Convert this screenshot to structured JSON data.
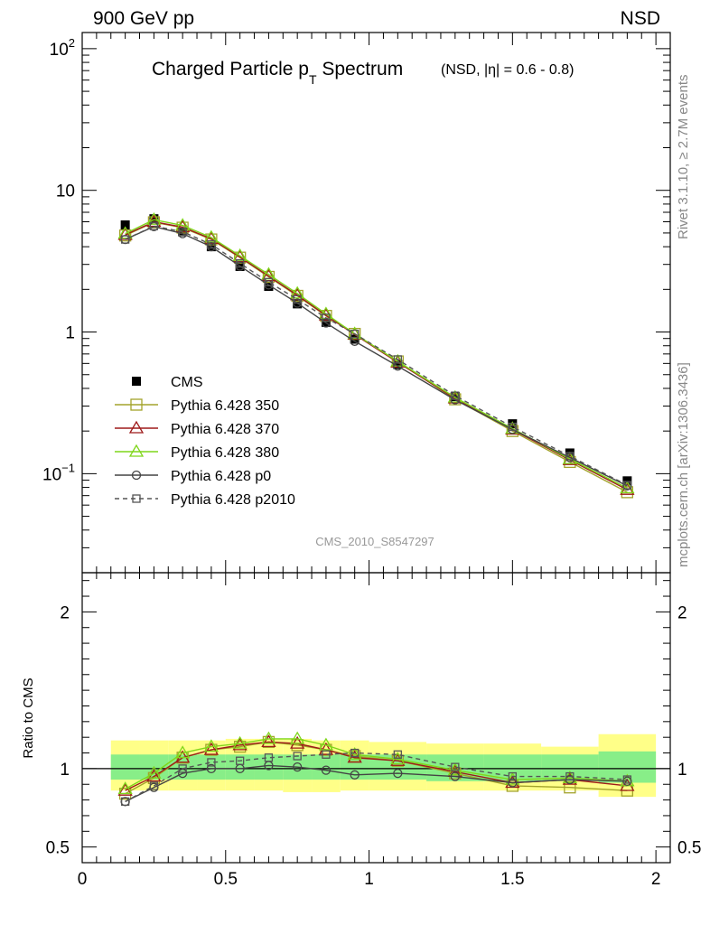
{
  "header": {
    "left": "900 GeV pp",
    "right": "NSD"
  },
  "side_labels": {
    "upper": "Rivet 3.1.10, ≥ 2.7M events",
    "lower": "mcplots.cern.ch [arXiv:1306.3436]"
  },
  "title": {
    "main": "Charged Particle p",
    "sub": "T",
    "main2": " Spectrum",
    "detail": "(NSD, |η| = 0.6 - 0.8)"
  },
  "watermark": "CMS_2010_S8547297",
  "ratio_ylabel": "Ratio to CMS",
  "colors": {
    "cms": "#000000",
    "p350": "#a3a32b",
    "p370": "#9e1a1a",
    "p380": "#7fd61a",
    "p0": "#444444",
    "p2010": "#555555",
    "band_outer": "#ffff88",
    "band_inner": "#88ee88"
  },
  "chart_data": {
    "type": "scatter",
    "x": [
      0.15,
      0.25,
      0.35,
      0.45,
      0.55,
      0.65,
      0.75,
      0.85,
      0.95,
      1.1,
      1.3,
      1.5,
      1.7,
      1.9
    ],
    "xlim": [
      0,
      2.05
    ],
    "main_panel": {
      "yscale": "log",
      "ylim": [
        0.02,
        130
      ],
      "y_ticklabels": [
        "10−1",
        "1",
        "10",
        "102"
      ],
      "series": [
        {
          "name": "CMS",
          "style": "data",
          "values": [
            5.7,
            6.3,
            5.1,
            4.0,
            2.9,
            2.1,
            1.58,
            1.17,
            0.89,
            0.59,
            0.35,
            0.225,
            0.14,
            0.089
          ]
        },
        {
          "name": "Pythia 6.428 350",
          "style": "square",
          "values": [
            4.8,
            5.95,
            5.45,
            4.5,
            3.35,
            2.45,
            1.8,
            1.3,
            0.97,
            0.62,
            0.335,
            0.2,
            0.121,
            0.074
          ]
        },
        {
          "name": "Pythia 6.428 370",
          "style": "triangle",
          "values": [
            4.85,
            6.0,
            5.5,
            4.55,
            3.38,
            2.48,
            1.82,
            1.31,
            0.96,
            0.61,
            0.34,
            0.205,
            0.125,
            0.077
          ]
        },
        {
          "name": "Pythia 6.428 380",
          "style": "triangle",
          "values": [
            4.95,
            6.2,
            5.65,
            4.65,
            3.45,
            2.55,
            1.87,
            1.34,
            0.97,
            0.62,
            0.345,
            0.208,
            0.127,
            0.079
          ]
        },
        {
          "name": "Pythia 6.428 p0",
          "style": "circle",
          "values": [
            4.5,
            5.55,
            4.95,
            4.0,
            2.92,
            2.15,
            1.6,
            1.16,
            0.86,
            0.575,
            0.332,
            0.205,
            0.13,
            0.082
          ]
        },
        {
          "name": "Pythia 6.428 p2010",
          "style": "dashed-square",
          "values": [
            4.5,
            5.6,
            5.1,
            4.15,
            3.05,
            2.25,
            1.7,
            1.26,
            0.97,
            0.64,
            0.355,
            0.214,
            0.133,
            0.083
          ]
        }
      ]
    },
    "ratio_panel": {
      "ylim": [
        0.4,
        2.25
      ],
      "y_ticklabels": [
        "0.5",
        "1",
        "2"
      ],
      "x_ticklabels": [
        "0",
        "0.5",
        "1",
        "1.5",
        "2"
      ],
      "band_edges": [
        0.1,
        0.2,
        0.3,
        0.4,
        0.5,
        0.6,
        0.7,
        0.8,
        0.9,
        1.0,
        1.2,
        1.4,
        1.6,
        1.8,
        2.0
      ],
      "band_outer": [
        [
          0.86,
          1.18
        ],
        [
          0.86,
          1.18
        ],
        [
          0.86,
          1.18
        ],
        [
          0.86,
          1.18
        ],
        [
          0.86,
          1.19
        ],
        [
          0.86,
          1.19
        ],
        [
          0.85,
          1.19
        ],
        [
          0.85,
          1.18
        ],
        [
          0.86,
          1.18
        ],
        [
          0.86,
          1.17
        ],
        [
          0.86,
          1.16
        ],
        [
          0.86,
          1.16
        ],
        [
          0.86,
          1.14
        ],
        [
          0.82,
          1.22
        ]
      ],
      "band_inner": [
        [
          0.93,
          1.09
        ],
        [
          0.93,
          1.09
        ],
        [
          0.93,
          1.09
        ],
        [
          0.93,
          1.09
        ],
        [
          0.93,
          1.09
        ],
        [
          0.93,
          1.09
        ],
        [
          0.93,
          1.09
        ],
        [
          0.93,
          1.09
        ],
        [
          0.93,
          1.09
        ],
        [
          0.93,
          1.09
        ],
        [
          0.92,
          1.09
        ],
        [
          0.92,
          1.09
        ],
        [
          0.92,
          1.09
        ],
        [
          0.91,
          1.11
        ]
      ],
      "series": [
        {
          "name": "Pythia 6.428 350",
          "values": [
            0.84,
            0.94,
            1.07,
            1.12,
            1.14,
            1.17,
            1.15,
            1.12,
            1.08,
            1.05,
            0.97,
            0.89,
            0.88,
            0.86
          ]
        },
        {
          "name": "Pythia 6.428 370",
          "values": [
            0.86,
            0.95,
            1.07,
            1.12,
            1.15,
            1.17,
            1.16,
            1.12,
            1.07,
            1.05,
            0.98,
            0.91,
            0.93,
            0.89
          ]
        },
        {
          "name": "Pythia 6.428 380",
          "values": [
            0.87,
            0.97,
            1.1,
            1.14,
            1.16,
            1.19,
            1.19,
            1.15,
            1.09,
            1.06,
            0.99,
            0.93,
            0.94,
            0.92
          ]
        },
        {
          "name": "Pythia 6.428 p0",
          "values": [
            0.79,
            0.88,
            0.97,
            1.0,
            1.0,
            1.02,
            1.01,
            0.99,
            0.96,
            0.97,
            0.95,
            0.91,
            0.93,
            0.92
          ]
        },
        {
          "name": "Pythia 6.428 p2010",
          "values": [
            0.79,
            0.89,
            1.0,
            1.04,
            1.05,
            1.07,
            1.08,
            1.09,
            1.1,
            1.09,
            1.01,
            0.95,
            0.95,
            0.93
          ]
        }
      ]
    }
  }
}
